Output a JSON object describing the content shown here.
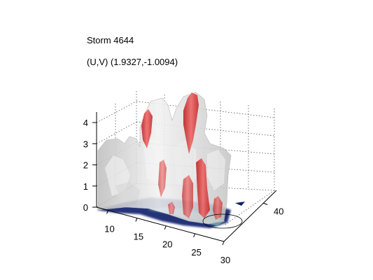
{
  "figure": {
    "title": "Storm 4644",
    "subtitle": "(U,V) (1.9327,-1.0094)"
  },
  "chart_data": {
    "type": "3d-isosurface",
    "title": "Storm 4644",
    "subtitle": "(U,V) (1.9327,-1.0094)",
    "xlabel": "",
    "ylabel": "",
    "zlabel": "",
    "x_ticks": [
      "10",
      "15",
      "20",
      "25",
      "30"
    ],
    "y_ticks": [
      "40"
    ],
    "z_ticks": [
      "0",
      "1",
      "2",
      "3",
      "4"
    ],
    "xlim": [
      8,
      30
    ],
    "ylim": [
      28,
      44
    ],
    "zlim": [
      0,
      4.5
    ],
    "grid": true,
    "legend": "none",
    "colors": {
      "outer_isosurface": "#d9d9d9",
      "inner_isosurface": "#e02a2a",
      "ground_shadow": "#0b1f6b",
      "ground_highlight": "#5fb7c9",
      "grid": "#555555"
    }
  }
}
